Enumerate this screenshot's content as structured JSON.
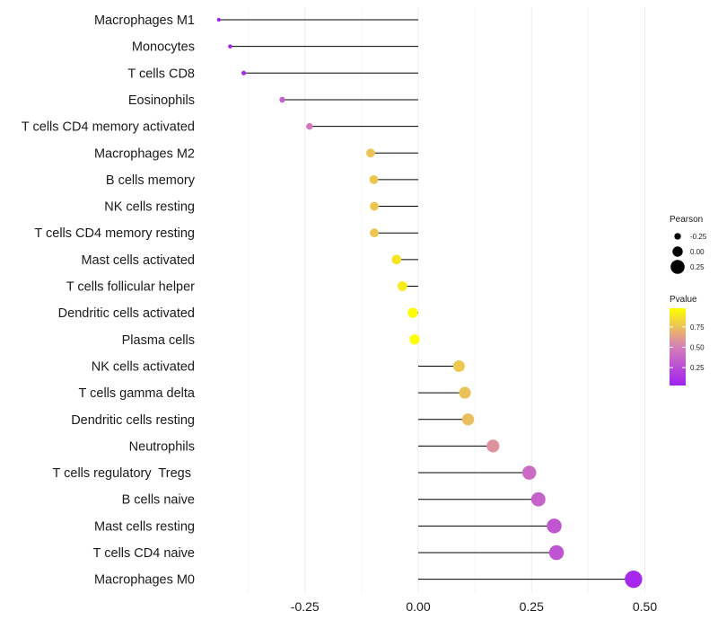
{
  "chart_data": {
    "type": "lollipop",
    "title": "",
    "xlabel": "",
    "ylabel": "",
    "xlim": [
      -0.44,
      0.5
    ],
    "x_ticks": [
      -0.25,
      0.0,
      0.25,
      0.5
    ],
    "x_tick_labels": [
      "-0.25",
      "0.00",
      "0.25",
      "0.50"
    ],
    "grid": true,
    "legend_position": "right",
    "points": [
      {
        "label": "Macrophages M1",
        "pearson": -0.44,
        "pvalue": 0.03
      },
      {
        "label": "Monocytes",
        "pearson": -0.415,
        "pvalue": 0.05
      },
      {
        "label": "T cells CD8",
        "pearson": -0.385,
        "pvalue": 0.09
      },
      {
        "label": "Eosinophils",
        "pearson": -0.3,
        "pvalue": 0.35
      },
      {
        "label": "T cells CD4 memory activated",
        "pearson": -0.24,
        "pvalue": 0.48
      },
      {
        "label": "Macrophages M2",
        "pearson": -0.105,
        "pvalue": 0.76
      },
      {
        "label": "B cells memory",
        "pearson": -0.098,
        "pvalue": 0.77
      },
      {
        "label": "NK cells resting",
        "pearson": -0.097,
        "pvalue": 0.77
      },
      {
        "label": "T cells CD4 memory resting",
        "pearson": -0.097,
        "pvalue": 0.77
      },
      {
        "label": "Mast cells activated",
        "pearson": -0.048,
        "pvalue": 0.88
      },
      {
        "label": "T cells follicular helper",
        "pearson": -0.035,
        "pvalue": 0.91
      },
      {
        "label": "Dendritic cells activated",
        "pearson": -0.012,
        "pvalue": 0.97
      },
      {
        "label": "Plasma cells",
        "pearson": -0.008,
        "pvalue": 0.98
      },
      {
        "label": "NK cells activated",
        "pearson": 0.09,
        "pvalue": 0.78
      },
      {
        "label": "T cells gamma delta",
        "pearson": 0.103,
        "pvalue": 0.75
      },
      {
        "label": "Dendritic cells resting",
        "pearson": 0.11,
        "pvalue": 0.74
      },
      {
        "label": "Neutrophils",
        "pearson": 0.165,
        "pvalue": 0.58
      },
      {
        "label": "T cells regulatory  Tregs ",
        "pearson": 0.245,
        "pvalue": 0.4
      },
      {
        "label": "B cells naive",
        "pearson": 0.265,
        "pvalue": 0.36
      },
      {
        "label": "Mast cells resting",
        "pearson": 0.3,
        "pvalue": 0.3
      },
      {
        "label": "T cells CD4 naive",
        "pearson": 0.305,
        "pvalue": 0.29
      },
      {
        "label": "Macrophages M0",
        "pearson": 0.475,
        "pvalue": 0.07
      }
    ],
    "legend": {
      "size_title": "Pearson",
      "size_entries": [
        {
          "label": "-0.25",
          "value": -0.25
        },
        {
          "label": "0.00",
          "value": 0.0
        },
        {
          "label": "0.25",
          "value": 0.25
        }
      ],
      "color_title": "Pvalue",
      "color_ticks": [
        {
          "label": "0.75",
          "value": 0.75
        },
        {
          "label": "0.50",
          "value": 0.5
        },
        {
          "label": "0.25",
          "value": 0.25
        }
      ],
      "color_range": [
        0.03,
        0.98
      ],
      "color_low": "#a020f0",
      "color_mid": "#d67fb8",
      "color_high": "#ffff00"
    }
  }
}
